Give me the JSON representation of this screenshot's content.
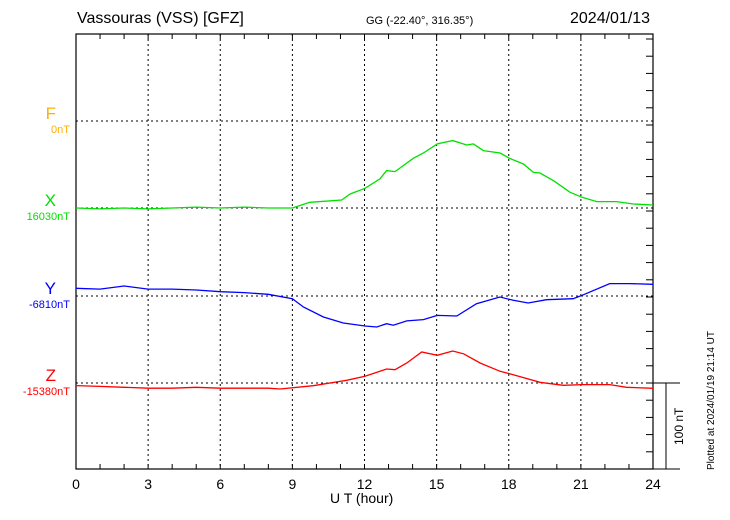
{
  "header": {
    "title": "Vassouras (VSS)  [GFZ]",
    "coords": "GG (-22.40°, 316.35°)",
    "date": "2024/01/13"
  },
  "footer_note": "Plotted at 2024/01/19 21:14 UT",
  "chart_data": {
    "type": "line",
    "title": "Vassouras (VSS)  [GFZ]",
    "xlabel": "U T (hour)",
    "xlim": [
      0,
      24
    ],
    "xticks": [
      "0",
      "3",
      "6",
      "9",
      "12",
      "15",
      "18",
      "21",
      "24"
    ],
    "scale_bar": "100 nT",
    "grid": true,
    "series": [
      {
        "name": "F",
        "baseline_label": "0nT",
        "color": "#ffb000",
        "x": [],
        "y": []
      },
      {
        "name": "X",
        "baseline_label": "16030nT",
        "color": "#00e000",
        "x": [
          0,
          1,
          2,
          3,
          4,
          5,
          6,
          7,
          8,
          9,
          9.73,
          11.05,
          11.4,
          12.02,
          12.64,
          12.92,
          13.27,
          14.03,
          14.45,
          15.03,
          15.67,
          16.25,
          16.53,
          16.94,
          17.64,
          18.03,
          18.61,
          19.02,
          19.3,
          19.86,
          20.55,
          21.05,
          21.66,
          22.49,
          23.18,
          24
        ],
        "y": [
          0,
          -1,
          0,
          -1,
          0,
          1,
          0,
          1,
          0,
          0,
          6.6,
          9.3,
          16.3,
          22.9,
          33.8,
          43.5,
          42.3,
          57.8,
          64,
          74.5,
          78.4,
          73.3,
          74.5,
          66.7,
          64,
          57.8,
          51.2,
          41.5,
          40.7,
          31.8,
          18.2,
          12.4,
          7.4,
          7.4,
          4.7,
          3.5
        ]
      },
      {
        "name": "Y",
        "baseline_label": "-6810nT",
        "color": "#0000ff",
        "x": [
          0,
          1,
          2,
          3,
          4,
          5,
          6,
          7,
          8,
          9,
          9.46,
          10.29,
          11.12,
          12.02,
          12.51,
          12.92,
          13.2,
          13.76,
          14.45,
          15.03,
          15.84,
          16.66,
          17.63,
          18.19,
          18.81,
          19.57,
          20.68,
          21.05,
          22.2,
          23.03,
          24
        ],
        "y": [
          9,
          8,
          11.6,
          8,
          8,
          7,
          5,
          4,
          2,
          -3.1,
          -12.8,
          -24.4,
          -31.4,
          -34.9,
          -36,
          -32.2,
          -34,
          -29,
          -27.5,
          -22.5,
          -23.3,
          -8.9,
          -1.2,
          -5,
          -8.1,
          -4.3,
          -3.1,
          0.8,
          14.4,
          14.4,
          13.6
        ]
      },
      {
        "name": "Z",
        "baseline_label": "-15380nT",
        "color": "#ff0000",
        "x": [
          0,
          1,
          2,
          3,
          4,
          5,
          6,
          7,
          8,
          8.49,
          9.87,
          11.26,
          12.02,
          12.92,
          13.27,
          13.76,
          14.38,
          15.03,
          15.67,
          16.12,
          16.81,
          17.64,
          18.19,
          19.3,
          20.27,
          21.05,
          22.2,
          22.9,
          24
        ],
        "y": [
          -3,
          -4,
          -5,
          -6,
          -6,
          -5,
          -6,
          -6,
          -6,
          -7,
          -3.1,
          3.1,
          7.8,
          16.3,
          15.5,
          23.3,
          36,
          32.2,
          37.2,
          34,
          23.3,
          13.6,
          9.7,
          0.8,
          -2.7,
          -1.9,
          -1.9,
          -5,
          -6.2
        ]
      }
    ]
  }
}
